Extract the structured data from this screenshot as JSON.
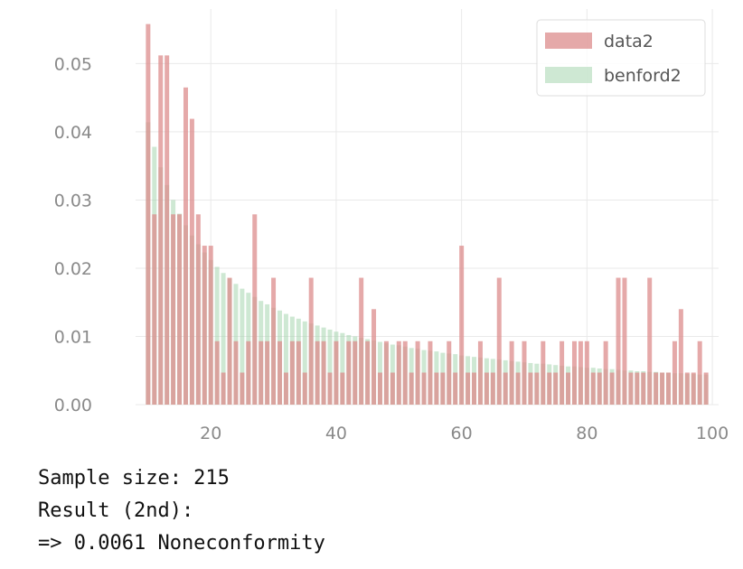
{
  "chart_data": {
    "type": "bar",
    "title": "",
    "xlabel": "",
    "ylabel": "",
    "xlim": [
      8,
      101
    ],
    "ylim": [
      0,
      0.058
    ],
    "x_ticks": [
      "20",
      "40",
      "60",
      "80",
      "100"
    ],
    "x_tick_values": [
      20,
      40,
      60,
      80,
      100
    ],
    "y_ticks": [
      "0.00",
      "0.01",
      "0.02",
      "0.03",
      "0.04",
      "0.05"
    ],
    "y_tick_values": [
      0,
      0.01,
      0.02,
      0.03,
      0.04,
      0.05
    ],
    "grid": true,
    "legend_position": "top-right",
    "x": [
      10,
      11,
      12,
      13,
      14,
      15,
      16,
      17,
      18,
      19,
      20,
      21,
      22,
      23,
      24,
      25,
      26,
      27,
      28,
      29,
      30,
      31,
      32,
      33,
      34,
      35,
      36,
      37,
      38,
      39,
      40,
      41,
      42,
      43,
      44,
      45,
      46,
      47,
      48,
      49,
      50,
      51,
      52,
      53,
      54,
      55,
      56,
      57,
      58,
      59,
      60,
      61,
      62,
      63,
      64,
      65,
      66,
      67,
      68,
      69,
      70,
      71,
      72,
      73,
      74,
      75,
      76,
      77,
      78,
      79,
      80,
      81,
      82,
      83,
      84,
      85,
      86,
      87,
      88,
      89,
      90,
      91,
      92,
      93,
      94,
      95,
      96,
      97,
      98,
      99
    ],
    "series": [
      {
        "name": "data2",
        "color": "#dc8c8c",
        "values": [
          0.0558,
          0.0279,
          0.0512,
          0.0512,
          0.0279,
          0.0279,
          0.0465,
          0.0419,
          0.0279,
          0.0233,
          0.0233,
          0.0093,
          0.0047,
          0.0186,
          0.0093,
          0.0047,
          0.0093,
          0.0279,
          0.0093,
          0.0093,
          0.0186,
          0.0093,
          0.0047,
          0.0093,
          0.0093,
          0.0047,
          0.0186,
          0.0093,
          0.0093,
          0.0047,
          0.0093,
          0.0047,
          0.0093,
          0.0093,
          0.0186,
          0.0093,
          0.014,
          0.0047,
          0.0093,
          0.0047,
          0.0093,
          0.0093,
          0.0047,
          0.0093,
          0.0047,
          0.0093,
          0.0047,
          0.0047,
          0.0093,
          0.0047,
          0.0233,
          0.0047,
          0.0047,
          0.0093,
          0.0047,
          0.0047,
          0.0186,
          0.0047,
          0.0093,
          0.0047,
          0.0093,
          0.0047,
          0.0047,
          0.0093,
          0.0047,
          0.0047,
          0.0093,
          0.0047,
          0.0093,
          0.0093,
          0.0093,
          0.0047,
          0.0047,
          0.0093,
          0.0047,
          0.0186,
          0.0186,
          0.0047,
          0.0047,
          0.0047,
          0.0186,
          0.0047,
          0.0047,
          0.0047,
          0.0093,
          0.014,
          0.0047,
          0.0047,
          0.0093,
          0.0047
        ]
      },
      {
        "name": "benford2",
        "color": "#9ed2a8",
        "values": [
          0.0414,
          0.0378,
          0.0348,
          0.0322,
          0.03,
          0.028,
          0.0263,
          0.0248,
          0.0235,
          0.0223,
          0.0212,
          0.0202,
          0.0193,
          0.0185,
          0.0177,
          0.017,
          0.0164,
          0.0158,
          0.0152,
          0.0147,
          0.0142,
          0.0138,
          0.0133,
          0.0129,
          0.0126,
          0.0122,
          0.0119,
          0.0116,
          0.0113,
          0.011,
          0.0107,
          0.0105,
          0.0102,
          0.01,
          0.0098,
          0.0096,
          0.0094,
          0.0092,
          0.009,
          0.0088,
          0.0087,
          0.0085,
          0.0083,
          0.0082,
          0.008,
          0.0079,
          0.0078,
          0.0076,
          0.0075,
          0.0074,
          0.0072,
          0.0071,
          0.007,
          0.0069,
          0.0068,
          0.0067,
          0.0066,
          0.0065,
          0.0064,
          0.0063,
          0.0062,
          0.0061,
          0.006,
          0.006,
          0.0059,
          0.0058,
          0.0057,
          0.0056,
          0.0056,
          0.0055,
          0.0054,
          0.0054,
          0.0053,
          0.0052,
          0.0052,
          0.0051,
          0.005,
          0.005,
          0.0049,
          0.0049,
          0.0048,
          0.0048,
          0.0047,
          0.0047,
          0.0046,
          0.0046,
          0.0045,
          0.0045,
          0.0044,
          0.0044
        ]
      }
    ]
  },
  "output": {
    "line1": "Sample size: 215",
    "line2": "Result (2nd):",
    "line3": "=> 0.0061 Noneconformity"
  }
}
